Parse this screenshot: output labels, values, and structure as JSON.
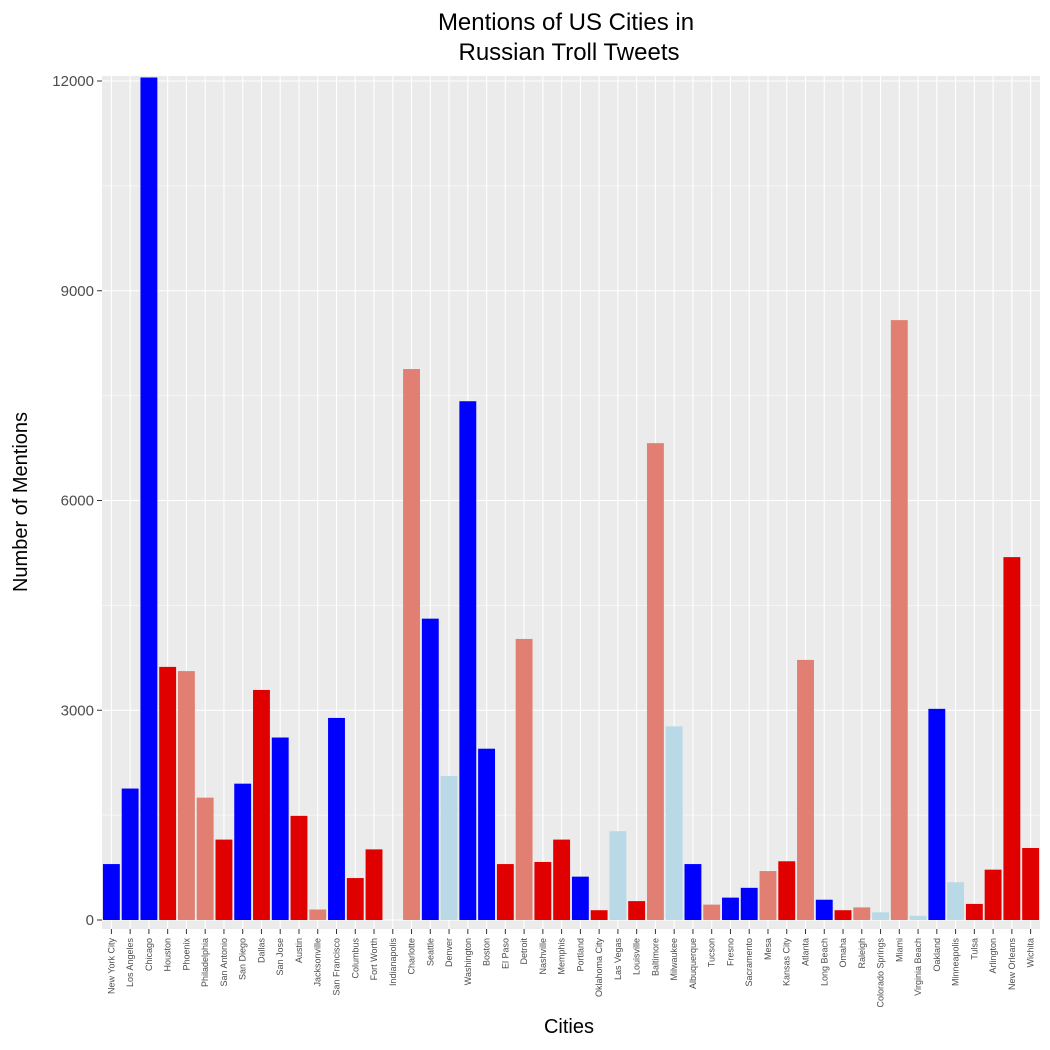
{
  "chart_data": {
    "type": "bar",
    "title": [
      "Mentions of US Cities in",
      "Russian Troll Tweets"
    ],
    "xlabel": "Cities",
    "ylabel": "Number of Mentions",
    "ylim": [
      0,
      12000
    ],
    "yticks": [
      0,
      3000,
      6000,
      9000,
      12000
    ],
    "grid": true,
    "legend": "none",
    "colors": {
      "blue": "#0000ff",
      "red": "#e00000",
      "salmon": "#e07f72",
      "lightblue": "#b9d9e6"
    },
    "categories": [
      "New York City",
      "Los Angeles",
      "Chicago",
      "Houston",
      "Phoenix",
      "Philadelphia",
      "San Antonio",
      "San Diego",
      "Dallas",
      "San Jose",
      "Austin",
      "Jacksonville",
      "San Francisco",
      "Columbus",
      "Fort Worth",
      "Indianapolis",
      "Charlotte",
      "Seattle",
      "Denver",
      "Washington",
      "Boston",
      "El Paso",
      "Detroit",
      "Nashville",
      "Memphis",
      "Portland",
      "Oklahoma City",
      "Las Vegas",
      "Louisville",
      "Baltimore",
      "Milwaukee",
      "Albuquerque",
      "Tucson",
      "Fresno",
      "Sacramento",
      "Mesa",
      "Kansas City",
      "Atlanta",
      "Long Beach",
      "Omaha",
      "Raleigh",
      "Colorado Springs",
      "Miami",
      "Virginia Beach",
      "Oakland",
      "Minneapolis",
      "Tulsa",
      "Arlington",
      "New Orleans",
      "Wichita"
    ],
    "values": [
      800,
      1880,
      12050,
      3620,
      3560,
      1750,
      1150,
      1950,
      3290,
      2610,
      1490,
      150,
      2890,
      600,
      1010,
      0,
      7880,
      4310,
      2060,
      7420,
      2450,
      800,
      4020,
      830,
      1150,
      620,
      140,
      1270,
      270,
      6820,
      2770,
      800,
      220,
      320,
      460,
      700,
      840,
      3720,
      290,
      140,
      180,
      110,
      8580,
      60,
      3020,
      540,
      230,
      720,
      5190,
      1030
    ],
    "bar_colors": [
      "blue",
      "blue",
      "blue",
      "red",
      "salmon",
      "salmon",
      "red",
      "blue",
      "red",
      "blue",
      "red",
      "salmon",
      "blue",
      "red",
      "red",
      "red",
      "salmon",
      "blue",
      "lightblue",
      "blue",
      "blue",
      "red",
      "salmon",
      "red",
      "red",
      "blue",
      "red",
      "lightblue",
      "red",
      "salmon",
      "lightblue",
      "blue",
      "salmon",
      "blue",
      "blue",
      "salmon",
      "red",
      "salmon",
      "blue",
      "red",
      "salmon",
      "lightblue",
      "salmon",
      "lightblue",
      "blue",
      "lightblue",
      "red",
      "red",
      "red",
      "red"
    ]
  }
}
